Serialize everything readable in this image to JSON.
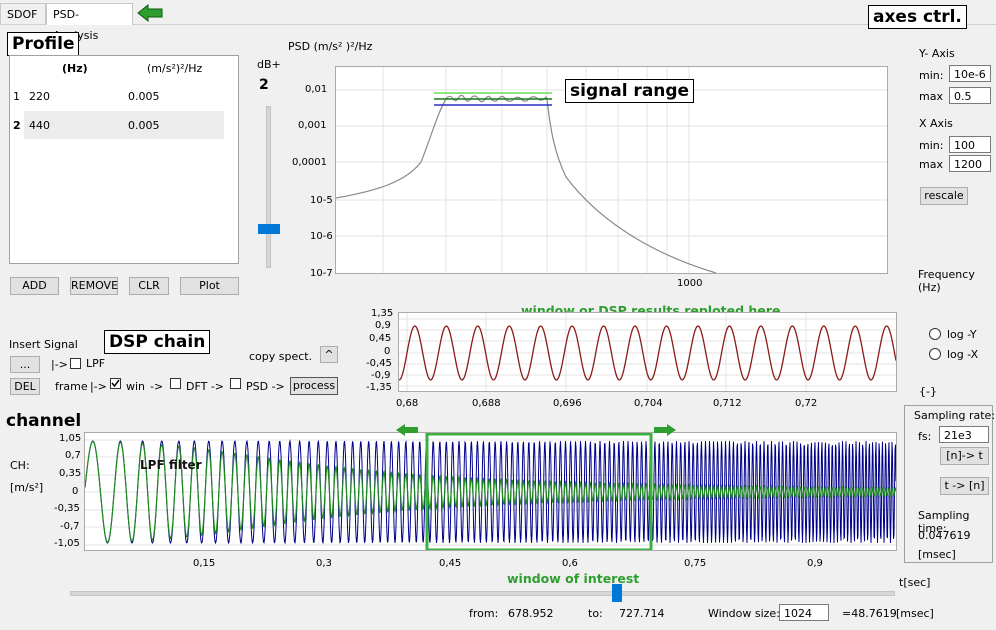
{
  "tabs": [
    {
      "label": "SDOF"
    },
    {
      "label": "PSD- Analysis"
    }
  ],
  "annotations": {
    "axes_ctrl": "axes ctrl.",
    "profile": "Profile",
    "signal_range": "signal range",
    "dsp_chain": "DSP chain",
    "channel": "channel",
    "window_hint": "window or DSP results reploted here",
    "window_of_interest": "window of interest",
    "lpf_filter": "LPF filter"
  },
  "profile_table": {
    "headers": [
      "(Hz)",
      "(m/s²)²/Hz"
    ],
    "rows": [
      {
        "index": "1",
        "freq": "220",
        "psd": "0.005"
      },
      {
        "index": "2",
        "freq": "440",
        "psd": "0.005"
      }
    ]
  },
  "profile_buttons": {
    "add": "ADD",
    "remove": "REMOVE",
    "clr": "CLR",
    "plot": "Plot"
  },
  "db_slider": {
    "label": "dB+",
    "value": "2",
    "level": 0.35
  },
  "psd_plot": {
    "ylabel": "PSD (m/s² )²/Hz",
    "yticks": [
      "0,01",
      "0,001",
      "0,0001",
      "10-5",
      "10-6",
      "10-7"
    ],
    "xtick": "1000",
    "xlabel": "Frequency (Hz)"
  },
  "axes_panel": {
    "y_axis_title": "Y- Axis",
    "y_min_label": "min:",
    "y_min": "10e-6",
    "y_max_label": "max",
    "y_max": "0.5",
    "x_axis_title": "X Axis",
    "x_min_label": "min:",
    "x_min": "100",
    "x_max_label": "max",
    "x_max": "1200",
    "rescale": "rescale"
  },
  "log_options": {
    "log_y": "log -Y",
    "log_x": "log -X",
    "units": "{-}"
  },
  "dsp": {
    "insert_signal": "Insert Signal",
    "dots": "...",
    "arrow1": "|->",
    "lpf": "LPF",
    "del": "DEL",
    "frame": "frame",
    "arrow2": "|->",
    "win": "win",
    "arrow3": "->",
    "dft": "DFT ->",
    "psd": "PSD ->",
    "process": "process",
    "copy_spect": "copy spect.",
    "caret": "^"
  },
  "window_plot": {
    "yticks": [
      "1,35",
      "0,9",
      "0,45",
      "0",
      "-0,45",
      "-0,9",
      "-1,35"
    ],
    "xticks": [
      "0,68",
      "0,688",
      "0,696",
      "0,704",
      "0,712",
      "0,72"
    ]
  },
  "channel_plot": {
    "ch_label": "CH:",
    "unit": "[m/s²]",
    "yticks": [
      "1,05",
      "0,7",
      "0,35",
      "0",
      "-0,35",
      "-0,7",
      "-1,05"
    ],
    "xticks": [
      "0,15",
      "0,3",
      "0,45",
      "0,6",
      "0,75",
      "0,9"
    ],
    "xlabel": "t[sec]"
  },
  "sampling": {
    "rate_title": "Sampling rate:",
    "fs_label": "fs:",
    "fs": "21e3",
    "n_to_t": "[n]-> t",
    "t_to_n": "t -> [n]",
    "time_title": "Sampling time:",
    "time_value": "0.047619",
    "time_unit": "[msec]"
  },
  "footer": {
    "from_label": "from:",
    "from": "678.952",
    "to_label": "to:",
    "to": "727.714",
    "ws_label": "Window size:",
    "ws": "1024",
    "eq": "=48.7619",
    "unit": "[msec]"
  },
  "colors": {
    "accent_green": "#2e9e2e",
    "signal_blue": "#00008b",
    "window_green": "#1f8a1f",
    "dark_red": "#8b0000",
    "slider_blue": "#0078d7"
  }
}
